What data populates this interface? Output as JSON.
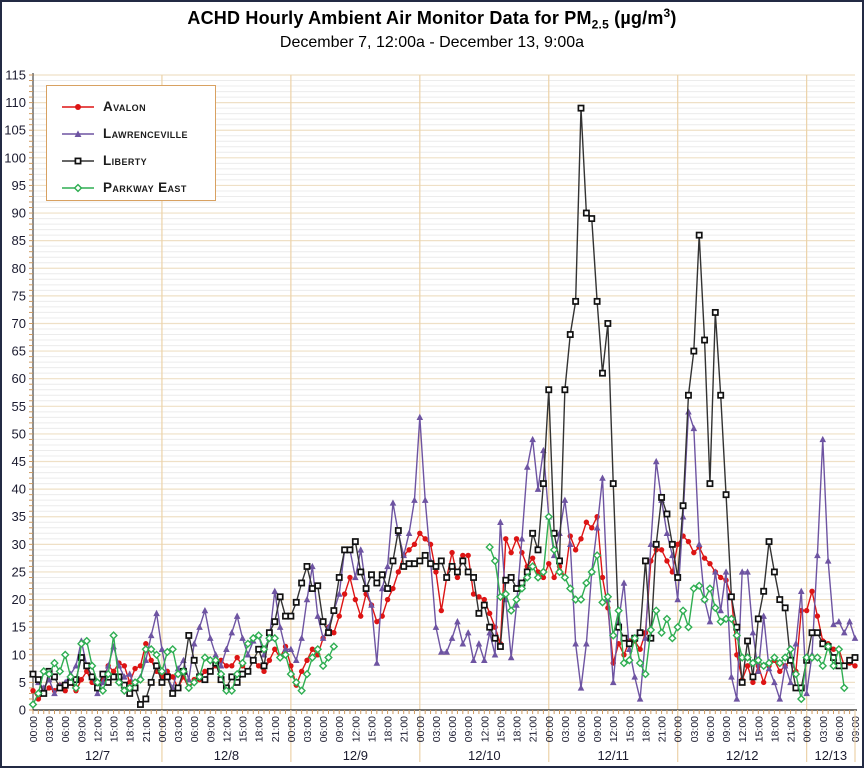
{
  "header": {
    "title_prefix": "ACHD Hourly Ambient Air Monitor Data for PM",
    "title_sub": "2.5",
    "title_mid": " (µg/m",
    "title_sup": "3",
    "title_end": ")",
    "subtitle": "December 7, 12:00a - December 13, 9:00a"
  },
  "chart_data": {
    "type": "line",
    "title": "ACHD Hourly Ambient Air Monitor Data for PM2.5 (µg/m³)",
    "subtitle": "December 7, 12:00a - December 13, 9:00a",
    "x_unit": "hour",
    "x_start": "12/7 00:00",
    "x_end": "12/13 09:00",
    "hours_total": 154,
    "ylim": [
      0,
      115
    ],
    "y_tick_step": 5,
    "y_minor_step": 1,
    "x_tick_label_every_hours": 3,
    "time_labels": [
      "00:00",
      "03:00",
      "06:00",
      "09:00",
      "12:00",
      "15:00",
      "18:00",
      "21:00"
    ],
    "days": [
      {
        "label": "12/7",
        "hours": 24
      },
      {
        "label": "12/8",
        "hours": 24
      },
      {
        "label": "12/9",
        "hours": 24
      },
      {
        "label": "12/10",
        "hours": 24
      },
      {
        "label": "12/11",
        "hours": 24
      },
      {
        "label": "12/12",
        "hours": 24
      },
      {
        "label": "12/13",
        "hours": 10
      }
    ],
    "grid": {
      "minor_color": "#ececec",
      "major_color": "#efe0c6",
      "day_line_color": "#ecd2a8",
      "tick_color": "#cf9a5e",
      "axis_color": "#222222",
      "label_color": "#1b1b2f"
    },
    "legend_position": "top-left",
    "series": [
      {
        "name": "Avalon",
        "color": "#dd1414",
        "marker": "circle",
        "marker_fill": "solid",
        "values": [
          3.5,
          2,
          3,
          4,
          3.5,
          4.5,
          3.5,
          5,
          3.5,
          5.5,
          7,
          5,
          4,
          5.5,
          8,
          7,
          8.5,
          8,
          5,
          7.5,
          8,
          12,
          9,
          7,
          6,
          7,
          6,
          4,
          6,
          4,
          5.5,
          5.5,
          7,
          7,
          8,
          9,
          8,
          8,
          9.5,
          8,
          7,
          9,
          8,
          7,
          9,
          11,
          9.5,
          11.5,
          8,
          4.5,
          7,
          9,
          11,
          10,
          13,
          15,
          14,
          17,
          21,
          24,
          20,
          17,
          21,
          19,
          16,
          17,
          20,
          22,
          25,
          28,
          29,
          30,
          32,
          31,
          30,
          25,
          18,
          24,
          28.5,
          24,
          28,
          28,
          21,
          20.5,
          20,
          17.5,
          15,
          12,
          31,
          28.5,
          31,
          28.5,
          26,
          27.5,
          25,
          24,
          26.5,
          24,
          26,
          24,
          31.5,
          29,
          31,
          34,
          33,
          35,
          24,
          18.5,
          8.5,
          12,
          10,
          12.5,
          12.5,
          11,
          14,
          27,
          29,
          29,
          27,
          25,
          30,
          31.5,
          30.5,
          28.5,
          29.5,
          27.5,
          26.5,
          25,
          24,
          23.5,
          20.5,
          10,
          5.5,
          8,
          5,
          8,
          5,
          8,
          9,
          7,
          8,
          9,
          7,
          18,
          18,
          21.5,
          17,
          12.5,
          12,
          11,
          11,
          8,
          8.5,
          8
        ]
      },
      {
        "name": "Lawrenceville",
        "color": "#6e54a2",
        "marker": "triangle",
        "marker_fill": "solid",
        "values": [
          6.5,
          5,
          4,
          5.5,
          3,
          4.5,
          5,
          6.5,
          8,
          12.5,
          8,
          6,
          3,
          5,
          8,
          11.5,
          8,
          6,
          6.5,
          4,
          6,
          9,
          13.5,
          17.5,
          11,
          6,
          4,
          7.5,
          9,
          5.5,
          12,
          15,
          18,
          13,
          10,
          8,
          11,
          14,
          17,
          13,
          10,
          12.5,
          13.5,
          10,
          13,
          21.5,
          15,
          11,
          11,
          9,
          13,
          20,
          26,
          17,
          13,
          15,
          18,
          21,
          29,
          29,
          24,
          29,
          22,
          19,
          8.5,
          22,
          26,
          37.5,
          32,
          28,
          32,
          38,
          53,
          38,
          27,
          15,
          10.5,
          10.5,
          13,
          16,
          12,
          14,
          9,
          12,
          9,
          14,
          10,
          34,
          20,
          9.5,
          19,
          31,
          44,
          49,
          40,
          47,
          35,
          28,
          32,
          38,
          30,
          12,
          4,
          12,
          25,
          33,
          42,
          20,
          5,
          16,
          23,
          11,
          6,
          2,
          13,
          30,
          45,
          38,
          32,
          28,
          20,
          35,
          54,
          51,
          30,
          20,
          16,
          25,
          18,
          25,
          6,
          2,
          25,
          25,
          14,
          7,
          17,
          7.5,
          5,
          2,
          8,
          5,
          12,
          21.5,
          3,
          10,
          28,
          49,
          27,
          15.5,
          16,
          14,
          16,
          13
        ]
      },
      {
        "name": "Liberty",
        "color": "#333333",
        "marker": "square",
        "marker_fill": "open",
        "values": [
          6.5,
          5.5,
          3,
          7,
          6,
          4,
          4.5,
          5,
          5.5,
          9.5,
          8,
          6,
          4,
          6.5,
          5,
          6,
          6,
          4.5,
          3,
          4,
          1,
          2,
          5,
          8,
          5,
          6,
          3,
          4,
          7,
          13.5,
          9,
          6,
          5.5,
          7,
          8.5,
          5.5,
          4,
          6,
          5,
          6.5,
          7,
          9,
          11,
          8,
          14,
          16,
          20.5,
          17,
          17,
          19.5,
          23,
          26,
          22,
          22.5,
          16,
          14,
          18,
          24,
          29,
          29,
          30.5,
          25,
          22,
          24.5,
          23,
          24.5,
          22,
          27,
          32.5,
          26,
          26.5,
          26.5,
          27,
          28,
          26.5,
          26,
          27,
          24,
          26,
          25,
          27,
          25,
          24,
          17.5,
          19,
          15,
          13,
          11.5,
          23.5,
          24,
          22,
          23,
          25,
          32,
          29,
          41,
          58,
          32,
          27,
          58,
          68,
          74,
          109,
          90,
          89,
          74,
          61,
          70,
          41,
          15,
          13,
          12,
          13,
          14,
          27,
          13,
          30,
          38.5,
          35.5,
          30,
          24,
          37,
          57,
          65,
          86,
          67,
          41,
          72,
          57,
          39,
          20.5,
          15,
          5,
          12.5,
          6,
          16.5,
          21.5,
          30.5,
          25,
          20,
          18.5,
          9,
          4,
          4,
          9,
          14,
          14,
          12,
          11.5,
          9.5,
          8,
          8,
          9,
          9.5
        ]
      },
      {
        "name": "Parkway East",
        "color": "#2fae52",
        "marker": "diamond",
        "marker_fill": "open",
        "values": [
          1,
          3,
          7,
          6.5,
          8.5,
          7,
          10,
          6,
          4,
          12,
          12.5,
          8,
          5,
          3.5,
          6.5,
          13.5,
          5,
          3.5,
          4,
          5,
          5.5,
          11,
          11,
          10,
          7,
          10.5,
          11,
          6.5,
          7,
          4,
          5,
          6,
          9.5,
          9,
          9,
          6.5,
          3.5,
          3.5,
          6.5,
          8.5,
          12,
          13,
          13.5,
          11,
          13,
          13,
          9.5,
          10,
          6.5,
          5,
          3.5,
          6.5,
          9.5,
          11,
          8,
          9.5,
          11.5,
          null,
          null,
          null,
          null,
          null,
          null,
          null,
          null,
          null,
          null,
          null,
          null,
          null,
          null,
          null,
          null,
          null,
          null,
          null,
          null,
          null,
          null,
          null,
          null,
          null,
          null,
          null,
          null,
          29.5,
          27,
          20.5,
          21,
          18,
          20,
          22,
          24,
          26,
          24,
          25,
          35,
          29,
          25,
          24,
          22,
          20,
          20,
          23,
          25,
          28,
          19.5,
          20.5,
          13.5,
          18,
          8.5,
          9,
          13,
          8.5,
          6.5,
          14.5,
          18,
          14,
          16.5,
          13,
          15,
          18,
          15,
          22,
          22.5,
          20,
          22,
          18.5,
          16,
          16.5,
          16.5,
          13.5,
          9.5,
          9.5,
          8.5,
          9,
          8,
          8.5,
          9.5,
          8.5,
          9.5,
          11,
          6.5,
          2,
          9.5,
          9.5,
          9.5,
          8,
          11.5,
          8,
          11,
          4,
          null,
          null
        ]
      }
    ]
  }
}
